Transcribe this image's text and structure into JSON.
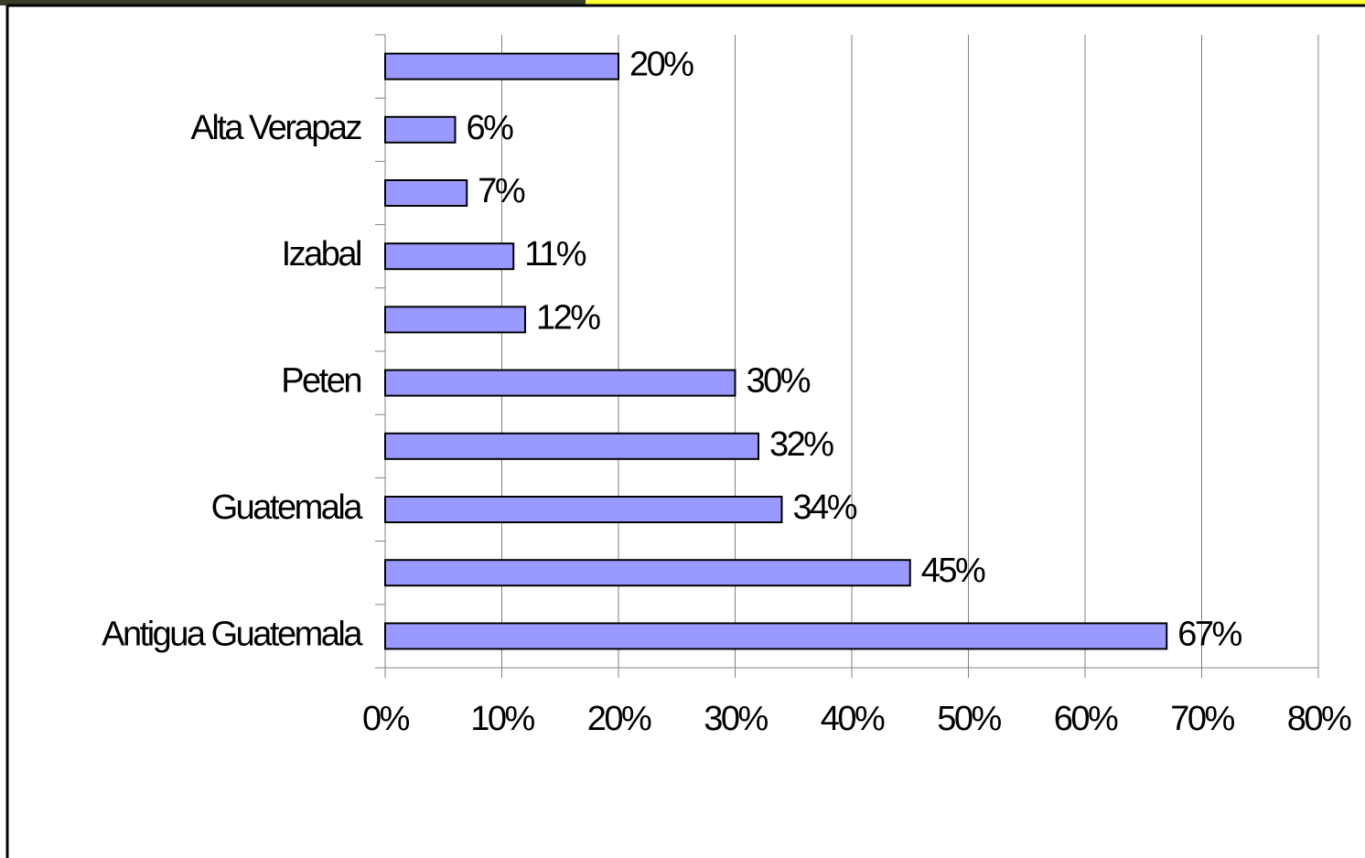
{
  "chart_data": {
    "type": "barh",
    "categories": [
      "Antigua Guatemala",
      null,
      "Guatemala",
      null,
      "Peten",
      null,
      "Izabal",
      null,
      "Alta Verapaz",
      null
    ],
    "values": [
      67,
      45,
      34,
      32,
      30,
      12,
      11,
      7,
      6,
      20
    ],
    "value_labels": [
      "67%",
      "45%",
      "34%",
      "32%",
      "30%",
      "12%",
      "11%",
      "7%",
      "6%",
      "20%"
    ],
    "color": "#9999ff",
    "xlim": [
      0,
      80
    ],
    "xticks": [
      {
        "value": 0,
        "label": "0%"
      },
      {
        "value": 10,
        "label": "10%"
      },
      {
        "value": 20,
        "label": "20%"
      },
      {
        "value": 30,
        "label": "30%"
      },
      {
        "value": 40,
        "label": "40%"
      },
      {
        "value": 50,
        "label": "50%"
      },
      {
        "value": 60,
        "label": "60%"
      },
      {
        "value": 70,
        "label": "70%"
      },
      {
        "value": 80,
        "label": "80%"
      }
    ],
    "grid": true
  }
}
